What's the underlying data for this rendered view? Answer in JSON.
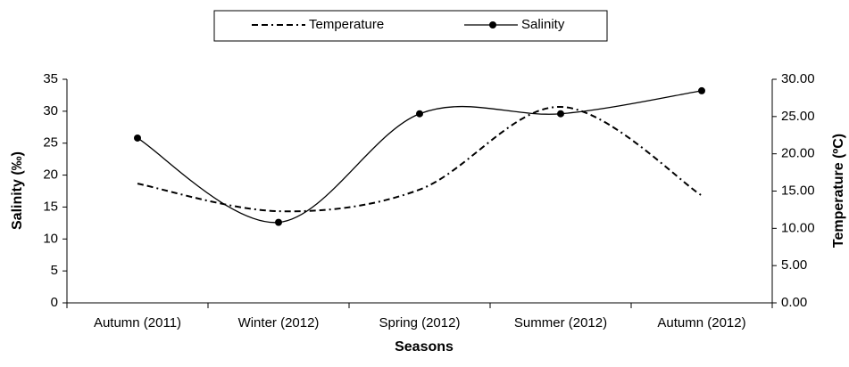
{
  "chart_data": {
    "type": "line",
    "xlabel": "Seasons",
    "ylabel": "Salinity (‰)",
    "y2label": "Temperature (ºC)",
    "categories": [
      "Autumn (2011)",
      "Winter (2012)",
      "Spring (2012)",
      "Summer (2012)",
      "Autumn (2012)"
    ],
    "series": [
      {
        "name": "Temperature",
        "color": "#000000",
        "style": "dashed",
        "axis": "y2",
        "values": [
          16.0,
          12.3,
          15.2,
          26.3,
          14.4
        ]
      },
      {
        "name": "Salinity",
        "color": "#000000",
        "style": "solid",
        "marker": "circle",
        "values": [
          25.8,
          12.6,
          29.6,
          29.6,
          33.2
        ]
      }
    ],
    "ylim": [
      0,
      35
    ],
    "yticks": [
      0,
      5,
      10,
      15,
      20,
      25,
      30,
      35
    ],
    "y2lim": [
      0,
      30
    ],
    "y2ticks": [
      {
        "value": 0,
        "label": "0.00"
      },
      {
        "value": 5,
        "label": "5.00"
      },
      {
        "value": 10,
        "label": "10.00"
      },
      {
        "value": 15,
        "label": "15.00"
      },
      {
        "value": 20,
        "label": "20.00"
      },
      {
        "value": 25,
        "label": "25.00"
      },
      {
        "value": 30,
        "label": "30.00"
      }
    ],
    "legend": "top",
    "grid": false
  }
}
